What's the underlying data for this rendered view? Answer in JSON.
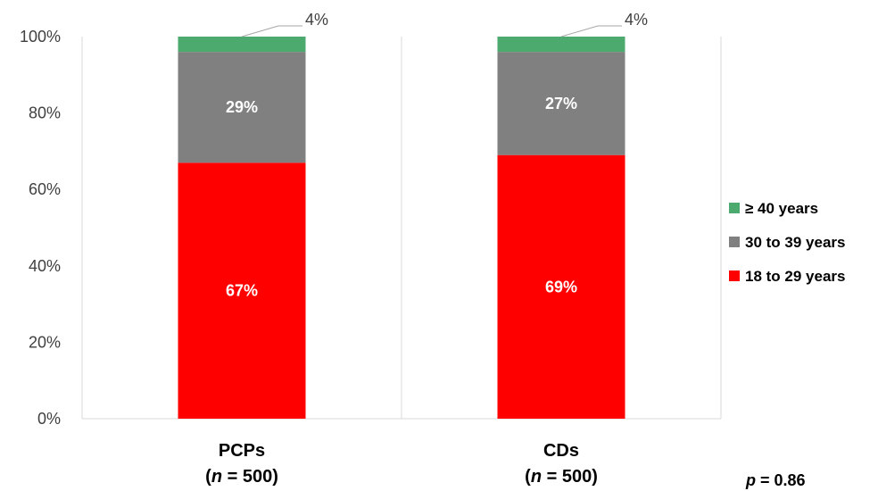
{
  "chart_data": {
    "type": "bar",
    "stacked": true,
    "percent_stacked": true,
    "categories": [
      "PCPs",
      "CDs"
    ],
    "category_n": [
      "(n = 500)",
      "(n = 500)"
    ],
    "series": [
      {
        "name": "18 to 29 years",
        "color": "#ff0000",
        "values": [
          67,
          69
        ],
        "labels": [
          "67%",
          "69%"
        ]
      },
      {
        "name": "30 to 39 years",
        "color": "#808080",
        "values": [
          29,
          27
        ],
        "labels": [
          "29%",
          "27%"
        ]
      },
      {
        "name": "≥ 40 years",
        "color": "#4daa6e",
        "values": [
          4,
          4
        ],
        "labels": [
          "4%",
          "4%"
        ]
      }
    ],
    "ylim": [
      0,
      100
    ],
    "yticks": [
      "0%",
      "20%",
      "40%",
      "60%",
      "80%",
      "100%"
    ],
    "legend_position": "right",
    "legend_order": [
      "≥ 40 years",
      "30 to 39 years",
      "18 to 29 years"
    ],
    "annotation": "p = 0.86"
  }
}
